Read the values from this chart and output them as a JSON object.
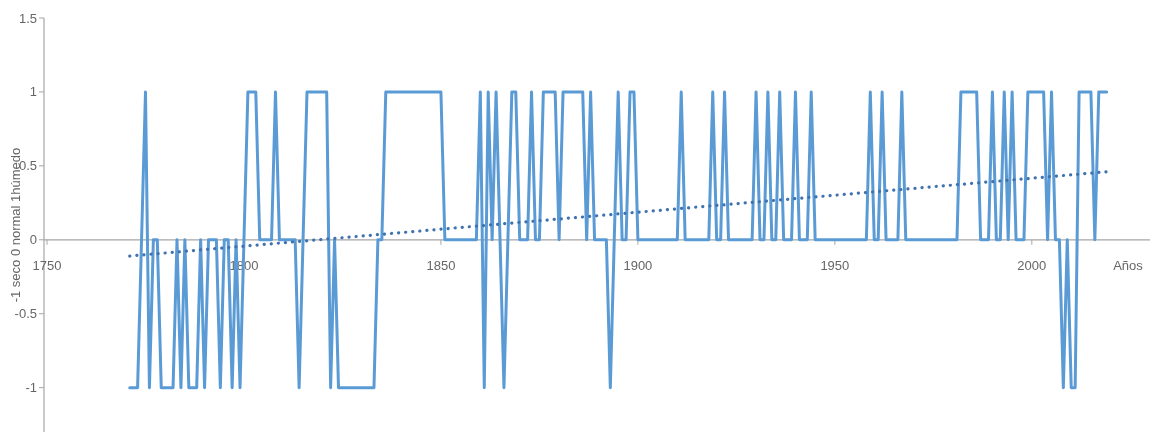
{
  "chart_data": {
    "type": "line",
    "xlabel": "Años",
    "ylabel": "-1 seco 0 normal 1húmedo",
    "xlim": [
      1750,
      2030
    ],
    "xticks": [
      1750,
      1800,
      1850,
      1900,
      1950,
      2000
    ],
    "ylim": [
      -1.3,
      1.5
    ],
    "yticks": [
      -1,
      -0.5,
      0,
      0.5,
      1,
      1.5
    ],
    "grid": false,
    "series": [
      {
        "color": "#5b9bd5",
        "line_style": "solid",
        "x": [
          1771,
          1772,
          1773,
          1774,
          1775,
          1776,
          1777,
          1778,
          1779,
          1780,
          1781,
          1782,
          1783,
          1784,
          1785,
          1786,
          1787,
          1788,
          1789,
          1790,
          1791,
          1792,
          1793,
          1794,
          1795,
          1796,
          1797,
          1798,
          1799,
          1800,
          1801,
          1802,
          1803,
          1804,
          1805,
          1806,
          1807,
          1808,
          1809,
          1810,
          1811,
          1812,
          1813,
          1814,
          1815,
          1816,
          1817,
          1818,
          1819,
          1820,
          1821,
          1822,
          1823,
          1824,
          1825,
          1826,
          1827,
          1828,
          1829,
          1830,
          1831,
          1832,
          1833,
          1834,
          1835,
          1836,
          1837,
          1838,
          1839,
          1840,
          1841,
          1842,
          1843,
          1844,
          1845,
          1846,
          1847,
          1848,
          1849,
          1850,
          1851,
          1852,
          1853,
          1854,
          1855,
          1856,
          1857,
          1858,
          1859,
          1860,
          1861,
          1862,
          1863,
          1864,
          1865,
          1866,
          1867,
          1868,
          1869,
          1870,
          1871,
          1872,
          1873,
          1874,
          1875,
          1876,
          1877,
          1878,
          1879,
          1880,
          1881,
          1882,
          1883,
          1884,
          1885,
          1886,
          1887,
          1888,
          1889,
          1890,
          1891,
          1892,
          1893,
          1894,
          1895,
          1896,
          1897,
          1898,
          1899,
          1900,
          1901,
          1902,
          1903,
          1904,
          1905,
          1906,
          1907,
          1908,
          1909,
          1910,
          1911,
          1912,
          1913,
          1914,
          1915,
          1916,
          1917,
          1918,
          1919,
          1920,
          1921,
          1922,
          1923,
          1924,
          1925,
          1926,
          1927,
          1928,
          1929,
          1930,
          1931,
          1932,
          1933,
          1934,
          1935,
          1936,
          1937,
          1938,
          1939,
          1940,
          1941,
          1942,
          1943,
          1944,
          1945,
          1946,
          1947,
          1948,
          1949,
          1950,
          1951,
          1952,
          1953,
          1954,
          1955,
          1956,
          1957,
          1958,
          1959,
          1960,
          1961,
          1962,
          1963,
          1964,
          1965,
          1966,
          1967,
          1968,
          1969,
          1970,
          1971,
          1972,
          1973,
          1974,
          1975,
          1976,
          1977,
          1978,
          1979,
          1980,
          1981,
          1982,
          1983,
          1984,
          1985,
          1986,
          1987,
          1988,
          1989,
          1990,
          1991,
          1992,
          1993,
          1994,
          1995,
          1996,
          1997,
          1998,
          1999,
          2000,
          2001,
          2002,
          2003,
          2004,
          2005,
          2006,
          2007,
          2008,
          2009,
          2010,
          2011,
          2012,
          2013,
          2014,
          2015,
          2016,
          2017,
          2018,
          2019
        ],
        "values": [
          -1,
          -1,
          -1,
          0,
          1,
          -1,
          0,
          0,
          -1,
          -1,
          -1,
          -1,
          0,
          -1,
          0,
          -1,
          -1,
          -1,
          0,
          -1,
          0,
          0,
          0,
          -1,
          0,
          0,
          -1,
          0,
          -1,
          0,
          1,
          1,
          1,
          0,
          0,
          0,
          0,
          1,
          0,
          0,
          0,
          0,
          0,
          -1,
          0,
          1,
          1,
          1,
          1,
          1,
          1,
          -1,
          0,
          -1,
          -1,
          -1,
          -1,
          -1,
          -1,
          -1,
          -1,
          -1,
          -1,
          0,
          0,
          1,
          1,
          1,
          1,
          1,
          1,
          1,
          1,
          1,
          1,
          1,
          1,
          1,
          1,
          1,
          0,
          0,
          0,
          0,
          0,
          0,
          0,
          0,
          0,
          1,
          -1,
          1,
          0,
          1,
          0,
          -1,
          0,
          1,
          1,
          0,
          0,
          0,
          1,
          0,
          0,
          1,
          1,
          1,
          1,
          0,
          1,
          1,
          1,
          1,
          1,
          1,
          0,
          1,
          0,
          0,
          0,
          0,
          -1,
          0,
          1,
          0,
          0,
          1,
          1,
          0,
          0,
          0,
          0,
          0,
          0,
          0,
          0,
          0,
          0,
          0,
          1,
          0,
          0,
          0,
          0,
          0,
          0,
          0,
          1,
          0,
          0,
          1,
          0,
          0,
          0,
          0,
          0,
          0,
          0,
          1,
          0,
          0,
          1,
          0,
          0,
          1,
          0,
          0,
          0,
          1,
          0,
          0,
          0,
          1,
          0,
          0,
          0,
          0,
          0,
          0,
          0,
          0,
          0,
          0,
          0,
          0,
          0,
          0,
          1,
          0,
          0,
          1,
          0,
          0,
          0,
          0,
          1,
          0,
          0,
          0,
          0,
          0,
          0,
          0,
          0,
          0,
          0,
          0,
          0,
          0,
          0,
          1,
          1,
          1,
          1,
          1,
          0,
          0,
          0,
          1,
          0,
          0,
          1,
          0,
          1,
          0,
          0,
          0,
          1,
          1,
          1,
          1,
          1,
          0,
          1,
          0,
          0,
          -1,
          0,
          -1,
          -1,
          1,
          1,
          1,
          1,
          0,
          1,
          1,
          1
        ]
      },
      {
        "color": "#3f72af",
        "line_style": "dotted",
        "x": [
          1771,
          2019
        ],
        "values": [
          -0.11,
          0.46
        ]
      }
    ]
  }
}
